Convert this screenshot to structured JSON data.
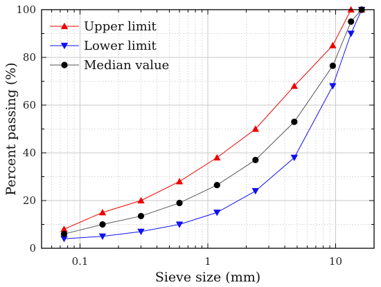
{
  "chart_data": {
    "type": "line",
    "xlabel": "Sieve size (mm)",
    "ylabel": "Percent passing (%)",
    "xscale": "log",
    "xlim": [
      0.05,
      20
    ],
    "ylim": [
      0,
      100
    ],
    "x_ticks": [
      {
        "value": 0.1,
        "label": "0.1"
      },
      {
        "value": 1,
        "label": "1"
      },
      {
        "value": 10,
        "label": "10"
      }
    ],
    "y_ticks": [
      {
        "value": 0,
        "label": "0"
      },
      {
        "value": 20,
        "label": "20"
      },
      {
        "value": 40,
        "label": "40"
      },
      {
        "value": 60,
        "label": "60"
      },
      {
        "value": 80,
        "label": "80"
      },
      {
        "value": 100,
        "label": "100"
      }
    ],
    "grid": true,
    "legend_position": "top-left",
    "series": [
      {
        "name": "Upper limit",
        "color": "#ee0000",
        "marker": "triangle-up",
        "points": [
          {
            "x": 0.075,
            "y": 8
          },
          {
            "x": 0.15,
            "y": 15
          },
          {
            "x": 0.3,
            "y": 20
          },
          {
            "x": 0.6,
            "y": 28
          },
          {
            "x": 1.18,
            "y": 38
          },
          {
            "x": 2.36,
            "y": 50
          },
          {
            "x": 4.75,
            "y": 68
          },
          {
            "x": 9.5,
            "y": 85
          },
          {
            "x": 13.2,
            "y": 100
          },
          {
            "x": 16,
            "y": 100
          }
        ]
      },
      {
        "name": "Lower limit",
        "color": "#1010ee",
        "marker": "triangle-down",
        "points": [
          {
            "x": 0.075,
            "y": 4
          },
          {
            "x": 0.15,
            "y": 5
          },
          {
            "x": 0.3,
            "y": 7
          },
          {
            "x": 0.6,
            "y": 10
          },
          {
            "x": 1.18,
            "y": 15
          },
          {
            "x": 2.36,
            "y": 24
          },
          {
            "x": 4.75,
            "y": 38
          },
          {
            "x": 9.5,
            "y": 68
          },
          {
            "x": 13.2,
            "y": 90
          },
          {
            "x": 16,
            "y": 100
          }
        ]
      },
      {
        "name": "Median value",
        "color": "#000000",
        "line_color": "#555555",
        "marker": "circle",
        "points": [
          {
            "x": 0.075,
            "y": 6
          },
          {
            "x": 0.15,
            "y": 10
          },
          {
            "x": 0.3,
            "y": 13.5
          },
          {
            "x": 0.6,
            "y": 19
          },
          {
            "x": 1.18,
            "y": 26.5
          },
          {
            "x": 2.36,
            "y": 37
          },
          {
            "x": 4.75,
            "y": 53
          },
          {
            "x": 9.5,
            "y": 76.5
          },
          {
            "x": 13.2,
            "y": 95
          },
          {
            "x": 16,
            "y": 100
          }
        ]
      }
    ]
  }
}
